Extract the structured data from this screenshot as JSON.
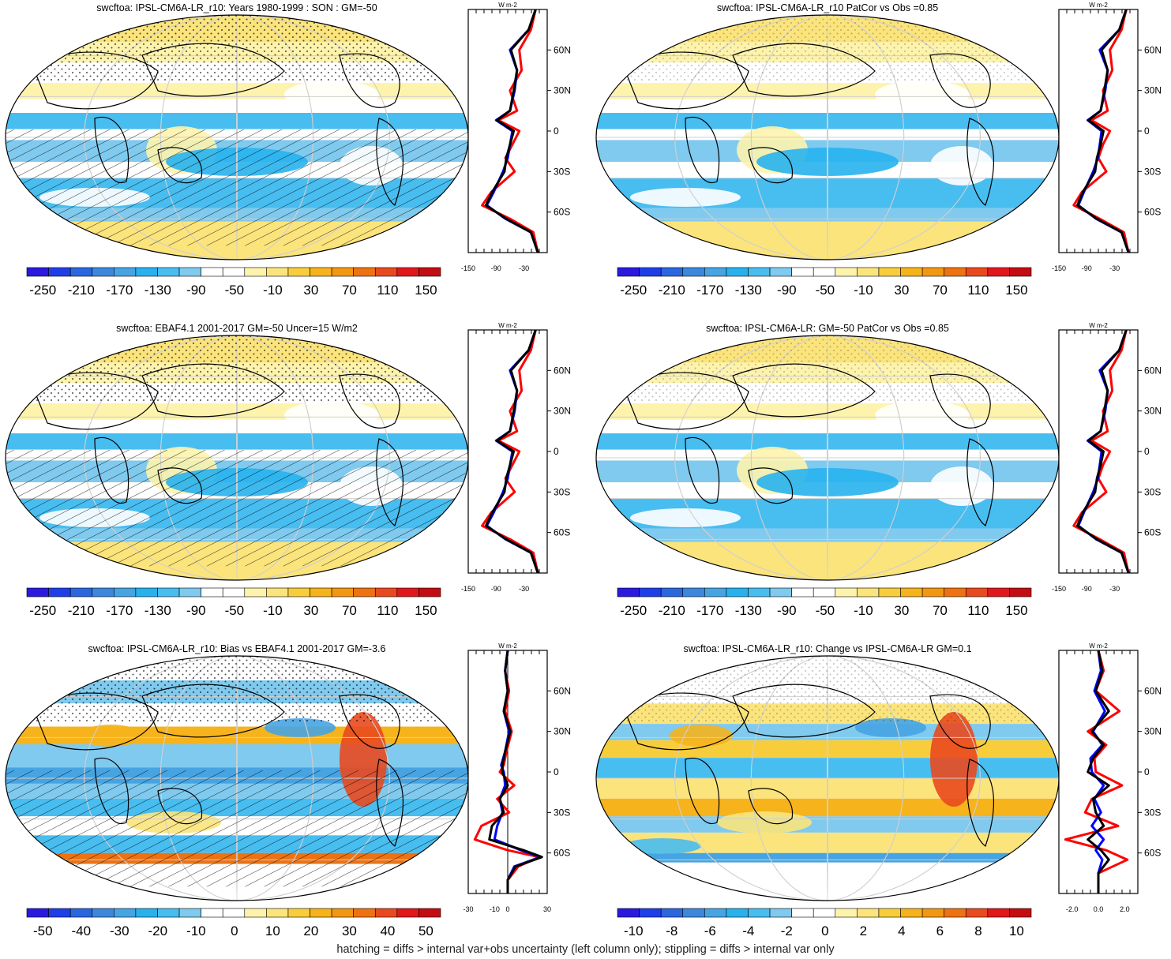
{
  "colors": {
    "levels": [
      "#2a1ae0",
      "#1e3fe8",
      "#2a66de",
      "#3d87dc",
      "#46a4e3",
      "#27b2ee",
      "#48bdf0",
      "#7fcaee",
      "#ffffff",
      "#ffffff",
      "#fdf3ad",
      "#fbe47c",
      "#f8cd3c",
      "#f6b31c",
      "#f39712",
      "#ee7211",
      "#e9491e",
      "#e0181c",
      "#c30d12"
    ],
    "obs": "#0000ff",
    "model": "#ff0000",
    "ens": "#000000",
    "grid": "#cfcfcf"
  },
  "footnote": "hatching = diffs > internal var+obs uncertainty (left column only); stippling = diffs > internal var only",
  "chart_data": [
    {
      "type": "heatmap",
      "id": "p1",
      "title": "swcftoa: IPSL-CM6A-LR_r10: Years 1980-1999 : SON : GM=-50",
      "colorbar_labels": [
        "-250",
        "-210",
        "-170",
        "-130",
        "-90",
        "-50",
        "-10",
        "30",
        "70",
        "110",
        "150"
      ],
      "profile": {
        "xlabel": "W m-2",
        "xticks": [
          "-150",
          "-90",
          "-30"
        ],
        "yticks": [
          "60N",
          "30N",
          "0",
          "30S",
          "60S"
        ],
        "xlim": [
          -150,
          20
        ],
        "lat": [
          90,
          75,
          60,
          45,
          30,
          15,
          8,
          0,
          -10,
          -20,
          -30,
          -45,
          -55,
          -65,
          -75,
          -90
        ],
        "obs": [
          -5,
          -20,
          -60,
          -45,
          -50,
          -60,
          -90,
          -55,
          -60,
          -65,
          -75,
          -95,
          -110,
          -70,
          -15,
          0
        ],
        "model": [
          -5,
          -15,
          -40,
          -35,
          -60,
          -45,
          -85,
          -40,
          -55,
          -70,
          -50,
          -100,
          -120,
          -60,
          -10,
          0
        ],
        "ens": [
          -5,
          -20,
          -58,
          -45,
          -52,
          -60,
          -88,
          -52,
          -60,
          -68,
          -72,
          -98,
          -112,
          -68,
          -15,
          0
        ]
      }
    },
    {
      "type": "heatmap",
      "id": "p2",
      "title": "swcftoa: IPSL-CM6A-LR_r10 PatCor vs Obs =0.85",
      "colorbar_labels": [
        "-250",
        "-210",
        "-170",
        "-130",
        "-90",
        "-50",
        "-10",
        "30",
        "70",
        "110",
        "150"
      ],
      "profile": {
        "xlabel": "W m-2",
        "xticks": [
          "-150",
          "-90",
          "-30"
        ],
        "yticks": [
          "60N",
          "30N",
          "0",
          "30S",
          "60S"
        ],
        "xlim": [
          -150,
          20
        ],
        "lat": [
          90,
          75,
          60,
          45,
          30,
          15,
          8,
          0,
          -10,
          -20,
          -30,
          -45,
          -55,
          -65,
          -75,
          -90
        ],
        "obs": [
          -5,
          -20,
          -62,
          -45,
          -50,
          -60,
          -88,
          -58,
          -62,
          -66,
          -76,
          -96,
          -108,
          -70,
          -15,
          0
        ],
        "model": [
          -5,
          -15,
          -40,
          -35,
          -55,
          -45,
          -80,
          -40,
          -55,
          -65,
          -48,
          -100,
          -118,
          -62,
          -10,
          0
        ],
        "ens": [
          -5,
          -20,
          -58,
          -45,
          -52,
          -60,
          -86,
          -54,
          -60,
          -68,
          -72,
          -98,
          -110,
          -68,
          -15,
          0
        ]
      }
    },
    {
      "type": "heatmap",
      "id": "p3",
      "title": "swcftoa: EBAF4.1 2001-2017 GM=-50 Uncer=15 W/m2",
      "colorbar_labels": [
        "-250",
        "-210",
        "-170",
        "-130",
        "-90",
        "-50",
        "-10",
        "30",
        "70",
        "110",
        "150"
      ],
      "profile": {
        "xlabel": "W m-2",
        "xticks": [
          "-150",
          "-90",
          "-30"
        ],
        "yticks": [
          "60N",
          "30N",
          "0",
          "30S",
          "60S"
        ],
        "xlim": [
          -150,
          20
        ],
        "lat": [
          90,
          75,
          60,
          45,
          30,
          15,
          8,
          0,
          -10,
          -20,
          -30,
          -45,
          -55,
          -65,
          -75,
          -90
        ],
        "obs": [
          -5,
          -20,
          -60,
          -45,
          -50,
          -60,
          -90,
          -55,
          -60,
          -65,
          -75,
          -95,
          -110,
          -70,
          -15,
          0
        ],
        "model": [
          -5,
          -15,
          -40,
          -35,
          -60,
          -45,
          -85,
          -40,
          -55,
          -70,
          -50,
          -100,
          -120,
          -60,
          -10,
          0
        ],
        "ens": [
          -5,
          -20,
          -58,
          -45,
          -52,
          -60,
          -88,
          -52,
          -60,
          -68,
          -72,
          -98,
          -112,
          -68,
          -15,
          0
        ]
      }
    },
    {
      "type": "heatmap",
      "id": "p4",
      "title": "swcftoa: IPSL-CM6A-LR: GM=-50 PatCor vs Obs =0.85",
      "colorbar_labels": [
        "-250",
        "-210",
        "-170",
        "-130",
        "-90",
        "-50",
        "-10",
        "30",
        "70",
        "110",
        "150"
      ],
      "profile": {
        "xlabel": "W m-2",
        "xticks": [
          "-150",
          "-90",
          "-30"
        ],
        "yticks": [
          "60N",
          "30N",
          "0",
          "30S",
          "60S"
        ],
        "xlim": [
          -150,
          20
        ],
        "lat": [
          90,
          75,
          60,
          45,
          30,
          15,
          8,
          0,
          -10,
          -20,
          -30,
          -45,
          -55,
          -65,
          -75,
          -90
        ],
        "obs": [
          -5,
          -20,
          -62,
          -45,
          -50,
          -60,
          -88,
          -58,
          -62,
          -66,
          -76,
          -96,
          -108,
          -70,
          -15,
          0
        ],
        "model": [
          -5,
          -15,
          -40,
          -35,
          -55,
          -45,
          -80,
          -40,
          -55,
          -65,
          -48,
          -100,
          -118,
          -62,
          -10,
          0
        ],
        "ens": [
          -5,
          -20,
          -58,
          -45,
          -52,
          -60,
          -86,
          -54,
          -60,
          -68,
          -72,
          -98,
          -110,
          -68,
          -15,
          0
        ]
      }
    },
    {
      "type": "heatmap",
      "id": "p5",
      "title": "swcftoa: IPSL-CM6A-LR_r10: Bias vs EBAF4.1 2001-2017  GM=-3.6",
      "colorbar_labels": [
        "-50",
        "-40",
        "-30",
        "-20",
        "-10",
        "0",
        "10",
        "20",
        "30",
        "40",
        "50"
      ],
      "profile": {
        "xlabel": "W m-2",
        "xticks": [
          "-30",
          "-10",
          "0",
          "30"
        ],
        "yticks": [
          "60N",
          "30N",
          "0",
          "30S",
          "60S"
        ],
        "xlim": [
          -30,
          30
        ],
        "zero_line": true,
        "lat": [
          90,
          75,
          60,
          45,
          30,
          15,
          5,
          0,
          -10,
          -20,
          -30,
          -40,
          -50,
          -58,
          -63,
          -70,
          -80,
          -90
        ],
        "obs": [
          0,
          -2,
          0,
          -3,
          1,
          -2,
          -5,
          -3,
          -2,
          -6,
          -4,
          -8,
          -10,
          10,
          25,
          5,
          0,
          0
        ],
        "model": [
          0,
          -2,
          1,
          -2,
          3,
          -1,
          -3,
          -6,
          5,
          -8,
          1,
          -20,
          -25,
          0,
          24,
          8,
          0,
          0
        ],
        "ens": [
          0,
          -2,
          0,
          -3,
          2,
          -2,
          -4,
          -4,
          0,
          -6,
          -3,
          -12,
          -14,
          12,
          26,
          6,
          0,
          0
        ]
      }
    },
    {
      "type": "heatmap",
      "id": "p6",
      "title": "swcftoa: IPSL-CM6A-LR_r10: Change vs IPSL-CM6A-LR GM=0.1",
      "colorbar_labels": [
        "-10",
        "-8",
        "-6",
        "-4",
        "-2",
        "0",
        "2",
        "4",
        "6",
        "8",
        "10"
      ],
      "profile": {
        "xlabel": "W m-2",
        "xticks": [
          "-2.0",
          "0.0",
          "2.0"
        ],
        "yticks": [
          "60N",
          "30N",
          "0",
          "30S",
          "60S"
        ],
        "xlim": [
          -3,
          3
        ],
        "lat": [
          90,
          75,
          60,
          45,
          30,
          20,
          10,
          0,
          -10,
          -20,
          -30,
          -40,
          -50,
          -58,
          -65,
          -75,
          -90
        ],
        "obs": [
          0,
          0.2,
          -0.3,
          0.5,
          -0.4,
          0.3,
          -0.6,
          -0.5,
          0.4,
          -0.3,
          0.2,
          -0.5,
          0.4,
          -0.2,
          0.3,
          0,
          0
        ],
        "model": [
          0,
          0.4,
          -0.2,
          1.6,
          -0.8,
          0.6,
          -0.3,
          -0.2,
          1.8,
          -0.5,
          -1.0,
          1.5,
          -2.5,
          0.6,
          2.2,
          0,
          0
        ],
        "ens": [
          0,
          0.3,
          -0.2,
          0.8,
          -0.5,
          0.4,
          -0.4,
          -0.8,
          0.8,
          -0.4,
          -0.2,
          0.4,
          -0.8,
          0.2,
          0.8,
          0,
          0
        ]
      }
    }
  ]
}
